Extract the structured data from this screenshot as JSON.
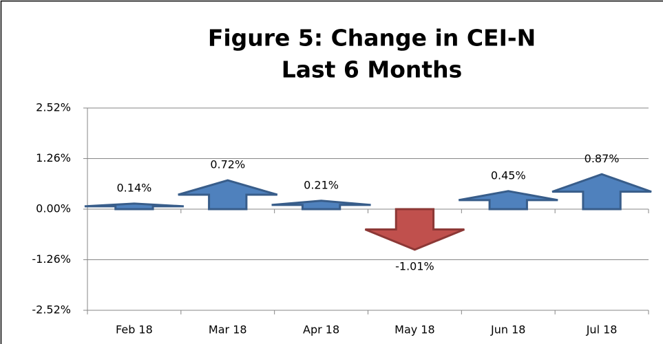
{
  "chart_data": {
    "type": "arrow",
    "title": [
      "Figure 5: Change in CEI-N",
      "Last 6 Months"
    ],
    "categories": [
      "Feb 18",
      "Mar 18",
      "Apr 18",
      "May 18",
      "Jun 18",
      "Jul 18"
    ],
    "values": [
      0.14,
      0.72,
      0.21,
      -1.01,
      0.45,
      0.87
    ],
    "value_labels": [
      "0.14%",
      "0.72%",
      "0.21%",
      "-1.01%",
      "0.45%",
      "0.87%"
    ],
    "colors": [
      "#4f81bd",
      "#4f81bd",
      "#4f81bd",
      "#c0504d",
      "#4f81bd",
      "#4f81bd"
    ],
    "ylim": [
      -2.52,
      2.52
    ],
    "yticks": [
      {
        "value": -2.52,
        "label": "-2.52%"
      },
      {
        "value": -1.26,
        "label": "-1.26%"
      },
      {
        "value": 0,
        "label": "0.00%"
      },
      {
        "value": 1.26,
        "label": "1.26%"
      },
      {
        "value": 2.52,
        "label": "2.52%"
      }
    ],
    "grid": true
  }
}
